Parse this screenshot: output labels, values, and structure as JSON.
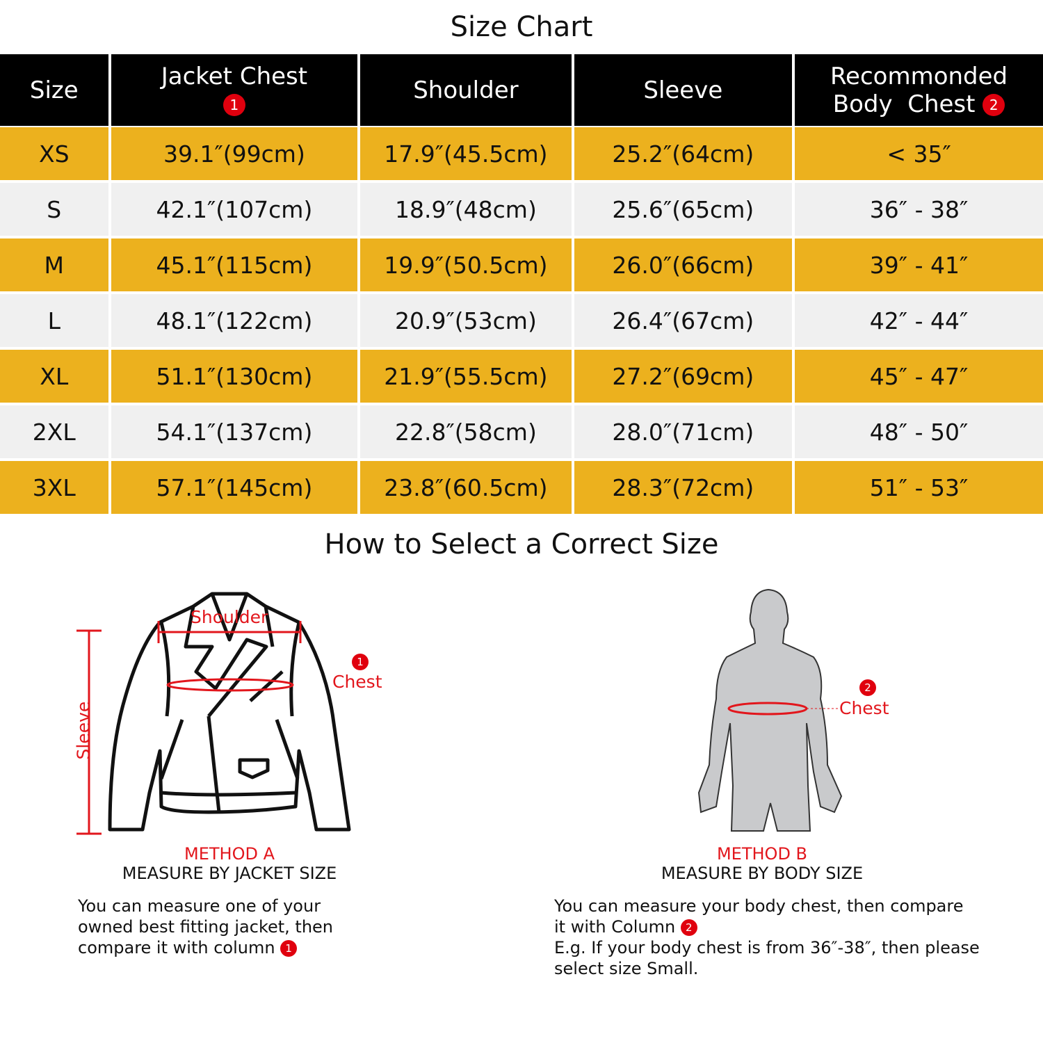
{
  "title": "Size Chart",
  "colors": {
    "header_bg": "#000000",
    "row_yellow": "#ECB11E",
    "row_grey": "#F0F0F0",
    "accent_red": "#E2161C"
  },
  "table": {
    "headers": [
      {
        "label": "Size"
      },
      {
        "label": "Jacket Chest",
        "badge": "1"
      },
      {
        "label": "Shoulder"
      },
      {
        "label": "Sleeve"
      },
      {
        "label": "Recommonded",
        "label2": "Body  Chest",
        "badge": "2"
      }
    ],
    "rows": [
      [
        "XS",
        "39.1″(99cm)",
        "17.9″(45.5cm)",
        "25.2″(64cm)",
        "< 35″"
      ],
      [
        "S",
        "42.1″(107cm)",
        "18.9″(48cm)",
        "25.6″(65cm)",
        "36″ - 38″"
      ],
      [
        "M",
        "45.1″(115cm)",
        "19.9″(50.5cm)",
        "26.0″(66cm)",
        "39″ - 41″"
      ],
      [
        "L",
        "48.1″(122cm)",
        "20.9″(53cm)",
        "26.4″(67cm)",
        "42″ - 44″"
      ],
      [
        "XL",
        "51.1″(130cm)",
        "21.9″(55.5cm)",
        "27.2″(69cm)",
        "45″ - 47″"
      ],
      [
        "2XL",
        "54.1″(137cm)",
        "22.8″(58cm)",
        "28.0″(71cm)",
        "48″ - 50″"
      ],
      [
        "3XL",
        "57.1″(145cm)",
        "23.8″(60.5cm)",
        "28.3″(72cm)",
        "51″ - 53″"
      ]
    ]
  },
  "guide": {
    "title": "How to Select a Correct Size",
    "method_a": {
      "labels": {
        "shoulder": "Shoulder",
        "sleeve": "Sleeve",
        "chest": "Chest",
        "badge": "1"
      },
      "name": "METHOD A",
      "subtitle": "MEASURE BY JACKET SIZE",
      "desc1": "You can measure one of your",
      "desc2": "owned best fitting jacket, then",
      "desc3": "compare it with column",
      "badge": "1"
    },
    "method_b": {
      "labels": {
        "chest": "Chest",
        "badge": "2"
      },
      "name": "METHOD B",
      "subtitle": "MEASURE BY BODY SIZE",
      "desc1": "You can measure your body chest, then compare",
      "desc2": "it with Column",
      "badge": "2",
      "desc3": "E.g. If your body chest is from 36″-38″, then please",
      "desc4": "select size Small."
    }
  }
}
